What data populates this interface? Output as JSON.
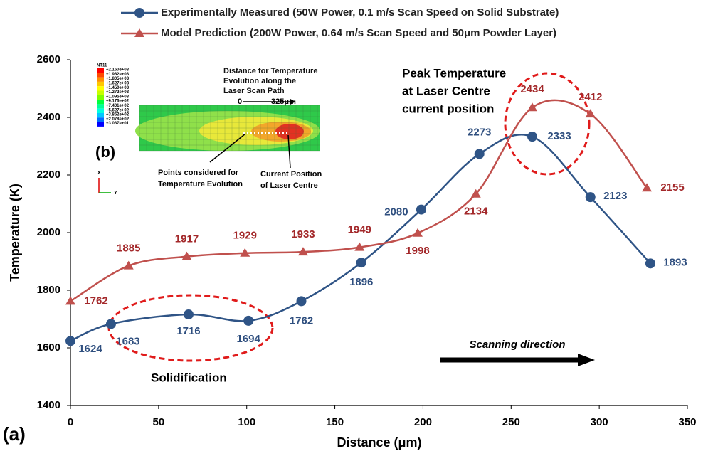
{
  "chart_data": {
    "type": "line",
    "xlabel": "Distance (μm)",
    "ylabel": "Temperature (K)",
    "xlim": [
      0,
      350
    ],
    "ylim": [
      1400,
      2600
    ],
    "xticks": [
      0,
      50,
      100,
      150,
      200,
      250,
      300,
      350
    ],
    "yticks": [
      1400,
      1600,
      1800,
      2000,
      2200,
      2400,
      2600
    ],
    "grid": false,
    "legend": "top",
    "series": [
      {
        "name": "Experimentally Measured (50W Power, 0.1 m/s Scan Speed on Solid Substrate)",
        "color": "#2f5486",
        "marker": "circle",
        "x": [
          0,
          23,
          67,
          101,
          131,
          165,
          199,
          232,
          262,
          295,
          329
        ],
        "values": [
          1624,
          1683,
          1716,
          1694,
          1762,
          1896,
          2080,
          2273,
          2333,
          2123,
          1893
        ]
      },
      {
        "name": "Model Prediction (200W Power, 0.64 m/s Scan Speed and 50μm Powder Layer)",
        "color": "#c0504d",
        "marker": "triangle",
        "x": [
          0,
          33,
          66,
          99,
          132,
          164,
          197,
          230,
          262,
          295,
          327
        ],
        "values": [
          1762,
          1885,
          1917,
          1929,
          1933,
          1949,
          1998,
          2134,
          2434,
          2412,
          2155
        ]
      }
    ],
    "annotations": {
      "panel": "(a)",
      "solidification": "Solidification",
      "peak": [
        "Peak Temperature",
        "at Laser Centre",
        "current position"
      ],
      "scanning": "Scanning direction"
    }
  },
  "inset": {
    "panel": "(b)",
    "colorbar_title": "NT11",
    "colorbar_labels": [
      "+2.160e+03",
      "+1.982e+03",
      "+1.805e+03",
      "+1.627e+03",
      "+1.450e+03",
      "+1.272e+03",
      "+1.095e+03",
      "+9.176e+02",
      "+7.401e+02",
      "+5.627e+02",
      "+3.852e+02",
      "+2.078e+02",
      "+3.037e+01"
    ],
    "path_note": [
      "Distance for Temperature",
      "Evolution along the",
      "Laser Scan Path"
    ],
    "path_start": "0",
    "path_end": "325μm",
    "points_note": [
      "Points considered for",
      "Temperature Evolution"
    ],
    "laser_note": [
      "Current Position",
      "of Laser Centre"
    ],
    "axis_x": "X",
    "axis_y": "Y"
  }
}
